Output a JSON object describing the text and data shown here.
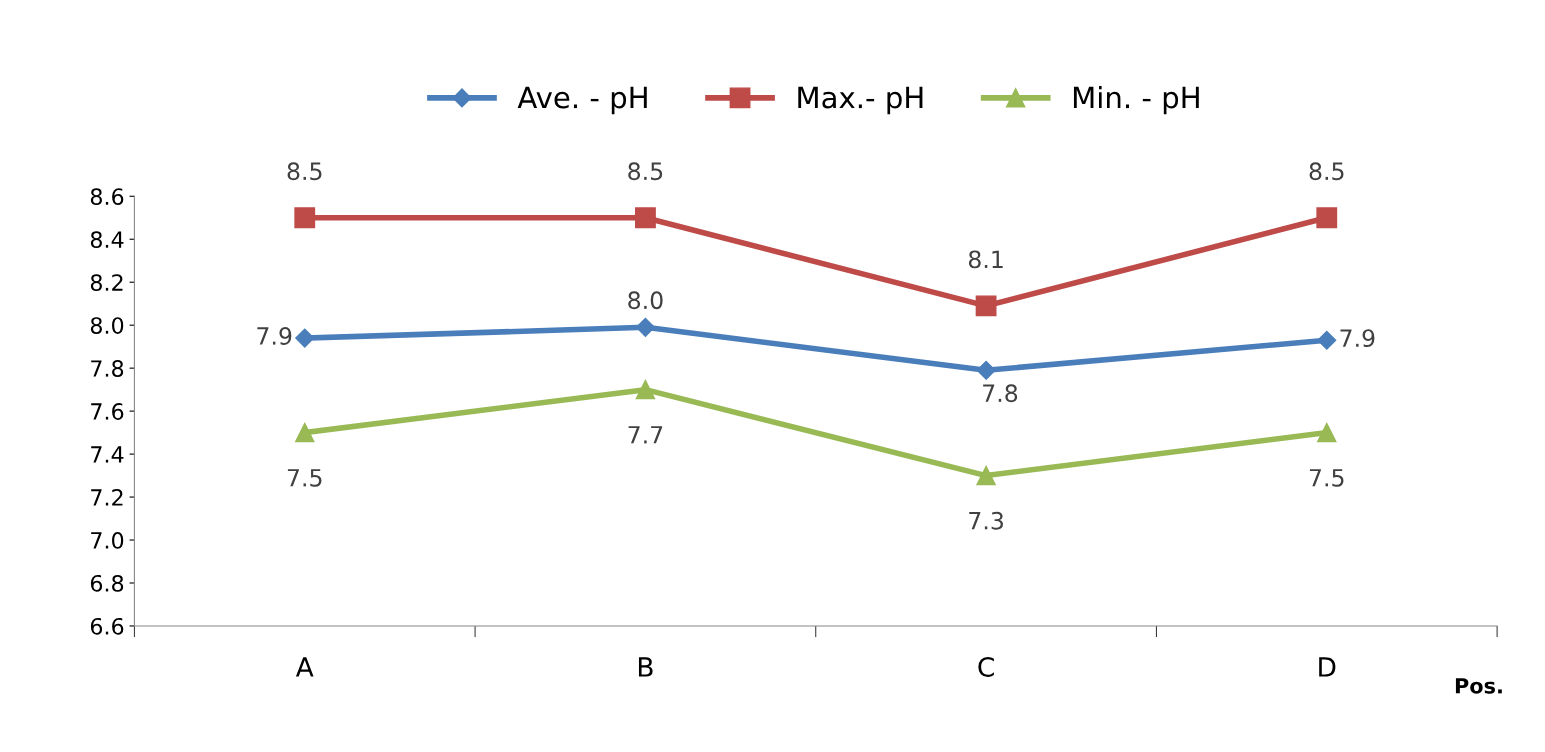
{
  "chart_data": {
    "type": "line",
    "categories": [
      "A",
      "B",
      "C",
      "D"
    ],
    "xlabel": "Pos.",
    "ylim": [
      6.6,
      8.6
    ],
    "yticks": [
      6.6,
      6.8,
      {
        "value": 7,
        "label": "7.0"
      },
      7.2,
      7.4,
      7.6,
      7.8,
      {
        "value": 8,
        "label": "8.0"
      },
      8.2,
      8.4,
      8.6
    ],
    "grid": false,
    "legend": "top",
    "line_style": "solid",
    "series": [
      {
        "name": "Ave. - pH",
        "color": "#4a7ebb",
        "marker": "diamond",
        "values": [
          7.94,
          7.99,
          7.79,
          7.93
        ],
        "value_labels": [
          "7.9",
          "8.0",
          "7.8",
          "7.9"
        ]
      },
      {
        "name": "Max.- pH",
        "color": "#be4b48",
        "marker": "square",
        "values": [
          8.5,
          8.5,
          8.09,
          8.5
        ],
        "value_labels": [
          "8.5",
          "8.5",
          "8.1",
          "8.5"
        ]
      },
      {
        "name": "Min. - pH",
        "color": "#98b954",
        "marker": "triangle",
        "values": [
          7.5,
          7.7,
          7.3,
          7.5
        ],
        "value_labels": [
          "7.5",
          "7.7",
          "7.3",
          "7.5"
        ]
      }
    ]
  }
}
